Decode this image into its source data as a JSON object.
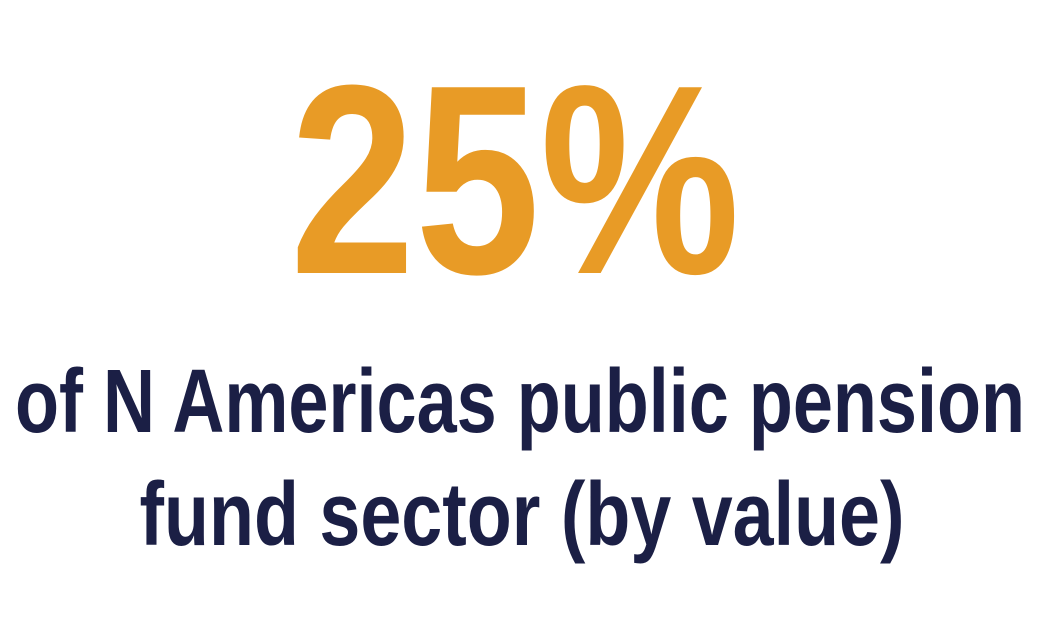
{
  "stat": {
    "value": "25%",
    "caption_lines": [
      "of N Americas public pension",
      "fund sector (by value)"
    ]
  }
}
